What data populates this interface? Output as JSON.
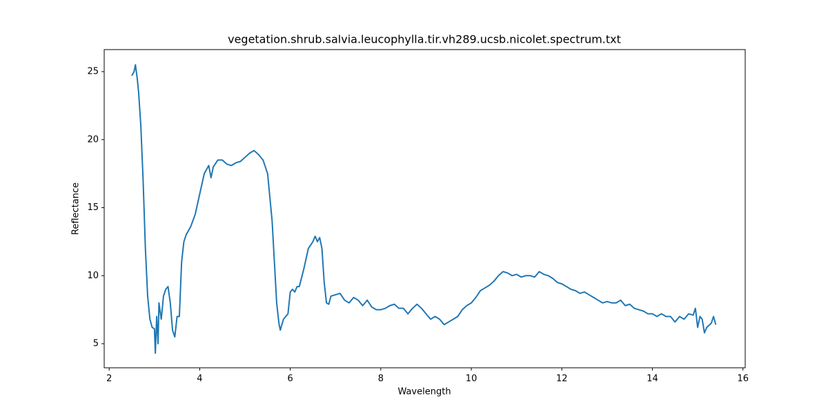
{
  "chart_data": {
    "type": "line",
    "title": "vegetation.shrub.salvia.leucophylla.tir.vh289.ucsb.nicolet.spectrum.txt",
    "x_label": "Wavelength",
    "y_label": "Reflectance",
    "color": "#1f77b4",
    "grid": false,
    "xlim": [
      1.89,
      16.05
    ],
    "ylim": [
      3.23,
      26.62
    ],
    "xticks": [
      2,
      4,
      6,
      8,
      10,
      12,
      14,
      16
    ],
    "yticks": [
      5,
      10,
      15,
      20,
      25
    ],
    "x": [
      2.5,
      2.55,
      2.58,
      2.62,
      2.65,
      2.7,
      2.75,
      2.8,
      2.85,
      2.9,
      2.95,
      3.0,
      3.02,
      3.05,
      3.08,
      3.1,
      3.15,
      3.2,
      3.25,
      3.3,
      3.35,
      3.4,
      3.45,
      3.5,
      3.55,
      3.6,
      3.65,
      3.7,
      3.8,
      3.9,
      4.0,
      4.1,
      4.2,
      4.25,
      4.3,
      4.4,
      4.5,
      4.6,
      4.7,
      4.8,
      4.9,
      5.0,
      5.1,
      5.2,
      5.3,
      5.4,
      5.5,
      5.6,
      5.65,
      5.7,
      5.75,
      5.78,
      5.85,
      5.95,
      6.0,
      6.05,
      6.1,
      6.15,
      6.2,
      6.3,
      6.4,
      6.5,
      6.55,
      6.6,
      6.65,
      6.7,
      6.75,
      6.8,
      6.85,
      6.9,
      7.0,
      7.1,
      7.2,
      7.3,
      7.4,
      7.5,
      7.6,
      7.7,
      7.8,
      7.9,
      8.0,
      8.1,
      8.2,
      8.3,
      8.4,
      8.5,
      8.6,
      8.7,
      8.8,
      8.9,
      9.0,
      9.1,
      9.2,
      9.3,
      9.4,
      9.5,
      9.6,
      9.7,
      9.8,
      9.9,
      10.0,
      10.1,
      10.2,
      10.3,
      10.4,
      10.5,
      10.6,
      10.7,
      10.8,
      10.9,
      11.0,
      11.1,
      11.2,
      11.3,
      11.4,
      11.5,
      11.6,
      11.7,
      11.8,
      11.9,
      12.0,
      12.1,
      12.2,
      12.3,
      12.4,
      12.5,
      12.6,
      12.7,
      12.8,
      12.9,
      13.0,
      13.1,
      13.2,
      13.3,
      13.4,
      13.5,
      13.6,
      13.7,
      13.8,
      13.9,
      14.0,
      14.1,
      14.2,
      14.3,
      14.4,
      14.5,
      14.6,
      14.7,
      14.8,
      14.9,
      14.95,
      15.0,
      15.05,
      15.1,
      15.15,
      15.2,
      15.3,
      15.35,
      15.4
    ],
    "values": [
      24.7,
      25.0,
      25.5,
      24.5,
      23.5,
      21.0,
      17.0,
      12.0,
      8.5,
      6.8,
      6.2,
      6.1,
      4.3,
      7.0,
      5.0,
      8.0,
      6.8,
      8.5,
      9.0,
      9.2,
      8.0,
      6.0,
      5.5,
      7.0,
      7.0,
      11.0,
      12.5,
      13.0,
      13.6,
      14.5,
      16.0,
      17.5,
      18.1,
      17.2,
      18.0,
      18.5,
      18.5,
      18.2,
      18.1,
      18.3,
      18.4,
      18.7,
      19.0,
      19.2,
      18.9,
      18.5,
      17.5,
      14.0,
      11.0,
      8.0,
      6.5,
      6.0,
      6.8,
      7.2,
      8.8,
      9.0,
      8.8,
      9.2,
      9.2,
      10.5,
      12.0,
      12.5,
      12.9,
      12.5,
      12.8,
      12.0,
      9.5,
      8.0,
      7.9,
      8.5,
      8.6,
      8.7,
      8.2,
      8.0,
      8.4,
      8.2,
      7.8,
      8.2,
      7.7,
      7.5,
      7.5,
      7.6,
      7.8,
      7.9,
      7.6,
      7.6,
      7.2,
      7.6,
      7.9,
      7.6,
      7.2,
      6.8,
      7.0,
      6.8,
      6.4,
      6.6,
      6.8,
      7.0,
      7.5,
      7.8,
      8.0,
      8.4,
      8.9,
      9.1,
      9.3,
      9.6,
      10.0,
      10.3,
      10.2,
      10.0,
      10.1,
      9.9,
      10.0,
      10.0,
      9.9,
      10.3,
      10.1,
      10.0,
      9.8,
      9.5,
      9.4,
      9.2,
      9.0,
      8.9,
      8.7,
      8.8,
      8.6,
      8.4,
      8.2,
      8.0,
      8.1,
      8.0,
      8.0,
      8.2,
      7.8,
      7.9,
      7.6,
      7.5,
      7.4,
      7.2,
      7.2,
      7.0,
      7.2,
      7.0,
      7.0,
      6.6,
      7.0,
      6.8,
      7.2,
      7.1,
      7.6,
      6.2,
      7.0,
      6.8,
      5.8,
      6.2,
      6.5,
      7.0,
      6.4
    ]
  }
}
